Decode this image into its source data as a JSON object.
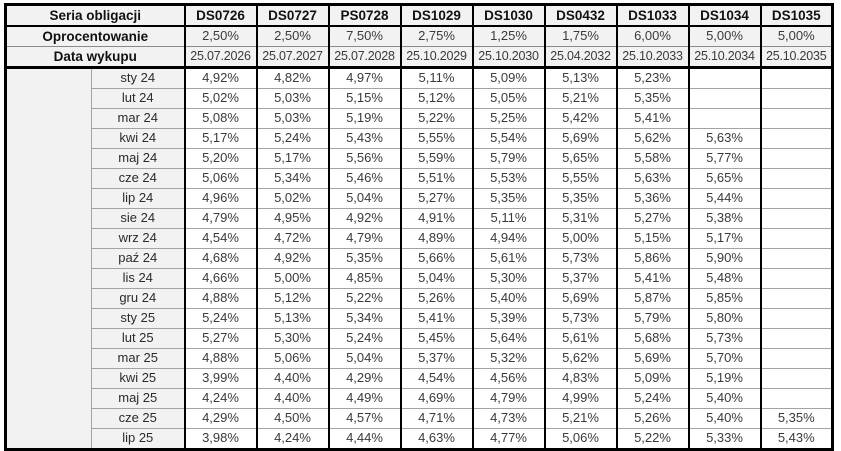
{
  "colors": {
    "header_background": "#f2f2f2",
    "outer_border": "#000000",
    "grid_line": "#a3a3a3",
    "value_text": "#3a3a3a",
    "label_text": "#111111"
  },
  "chart_data": {
    "type": "table",
    "title": "",
    "header": {
      "row1_label": "Seria obligacji",
      "row2_label": "Oprocentowanie",
      "row3_label": "Data wykupu",
      "series": [
        "DS0726",
        "DS0727",
        "PS0728",
        "DS1029",
        "DS1030",
        "DS0432",
        "DS1033",
        "DS1034",
        "DS1035"
      ],
      "interest_rates": [
        "2,50%",
        "2,50%",
        "7,50%",
        "2,75%",
        "1,25%",
        "1,75%",
        "6,00%",
        "5,00%",
        "5,00%"
      ],
      "maturity_dates": [
        "25.07.2026",
        "25.07.2027",
        "25.07.2028",
        "25.10.2029",
        "25.10.2030",
        "25.04.2032",
        "25.10.2033",
        "25.10.2034",
        "25.10.2035"
      ]
    },
    "rows": [
      {
        "month": "sty 24",
        "values": [
          "4,92%",
          "4,82%",
          "4,97%",
          "5,11%",
          "5,09%",
          "5,13%",
          "5,23%",
          "",
          ""
        ]
      },
      {
        "month": "lut 24",
        "values": [
          "5,02%",
          "5,03%",
          "5,15%",
          "5,12%",
          "5,05%",
          "5,21%",
          "5,35%",
          "",
          ""
        ]
      },
      {
        "month": "mar 24",
        "values": [
          "5,08%",
          "5,03%",
          "5,19%",
          "5,22%",
          "5,25%",
          "5,42%",
          "5,41%",
          "",
          ""
        ]
      },
      {
        "month": "kwi 24",
        "values": [
          "5,17%",
          "5,24%",
          "5,43%",
          "5,55%",
          "5,54%",
          "5,69%",
          "5,62%",
          "5,63%",
          ""
        ]
      },
      {
        "month": "maj 24",
        "values": [
          "5,20%",
          "5,17%",
          "5,56%",
          "5,59%",
          "5,79%",
          "5,65%",
          "5,58%",
          "5,77%",
          ""
        ]
      },
      {
        "month": "cze 24",
        "values": [
          "5,06%",
          "5,34%",
          "5,46%",
          "5,51%",
          "5,53%",
          "5,55%",
          "5,63%",
          "5,65%",
          ""
        ]
      },
      {
        "month": "lip 24",
        "values": [
          "4,96%",
          "5,02%",
          "5,04%",
          "5,27%",
          "5,35%",
          "5,35%",
          "5,36%",
          "5,44%",
          ""
        ]
      },
      {
        "month": "sie 24",
        "values": [
          "4,79%",
          "4,95%",
          "4,92%",
          "4,91%",
          "5,11%",
          "5,31%",
          "5,27%",
          "5,38%",
          ""
        ]
      },
      {
        "month": "wrz 24",
        "values": [
          "4,54%",
          "4,72%",
          "4,79%",
          "4,89%",
          "4,94%",
          "5,00%",
          "5,15%",
          "5,17%",
          ""
        ]
      },
      {
        "month": "paź 24",
        "values": [
          "4,68%",
          "4,92%",
          "5,35%",
          "5,66%",
          "5,61%",
          "5,73%",
          "5,86%",
          "5,90%",
          ""
        ]
      },
      {
        "month": "lis 24",
        "values": [
          "4,66%",
          "5,00%",
          "4,85%",
          "5,04%",
          "5,30%",
          "5,37%",
          "5,41%",
          "5,48%",
          ""
        ]
      },
      {
        "month": "gru 24",
        "values": [
          "4,88%",
          "5,12%",
          "5,22%",
          "5,26%",
          "5,40%",
          "5,69%",
          "5,87%",
          "5,85%",
          ""
        ]
      },
      {
        "month": "sty 25",
        "values": [
          "5,24%",
          "5,13%",
          "5,34%",
          "5,41%",
          "5,39%",
          "5,73%",
          "5,79%",
          "5,80%",
          ""
        ]
      },
      {
        "month": "lut 25",
        "values": [
          "5,27%",
          "5,30%",
          "5,24%",
          "5,45%",
          "5,64%",
          "5,61%",
          "5,68%",
          "5,73%",
          ""
        ]
      },
      {
        "month": "mar 25",
        "values": [
          "4,88%",
          "5,06%",
          "5,04%",
          "5,37%",
          "5,32%",
          "5,62%",
          "5,69%",
          "5,70%",
          ""
        ]
      },
      {
        "month": "kwi 25",
        "values": [
          "3,99%",
          "4,40%",
          "4,29%",
          "4,54%",
          "4,56%",
          "4,83%",
          "5,09%",
          "5,19%",
          ""
        ]
      },
      {
        "month": "maj 25",
        "values": [
          "4,24%",
          "4,40%",
          "4,49%",
          "4,69%",
          "4,79%",
          "4,99%",
          "5,24%",
          "5,40%",
          ""
        ]
      },
      {
        "month": "cze 25",
        "values": [
          "4,29%",
          "4,50%",
          "4,57%",
          "4,71%",
          "4,73%",
          "5,21%",
          "5,26%",
          "5,40%",
          "5,35%"
        ]
      },
      {
        "month": "lip 25",
        "values": [
          "3,98%",
          "4,24%",
          "4,44%",
          "4,63%",
          "4,77%",
          "5,06%",
          "5,22%",
          "5,33%",
          "5,43%"
        ]
      }
    ]
  }
}
